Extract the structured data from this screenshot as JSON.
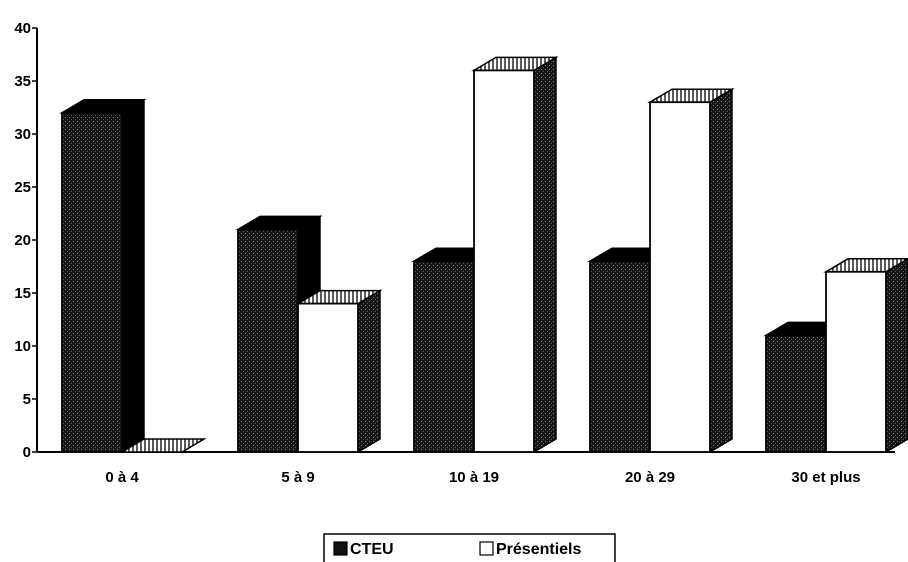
{
  "chart_data": {
    "type": "bar",
    "title": "",
    "xlabel": "",
    "ylabel": "",
    "ylim": [
      0,
      40
    ],
    "yticks": [
      0,
      5,
      10,
      15,
      20,
      25,
      30,
      35,
      40
    ],
    "categories": [
      "0 à 4",
      "5 à 9",
      "10 à 19",
      "20 à 29",
      "30 et plus"
    ],
    "series": [
      {
        "name": "CTEU",
        "values": [
          32,
          21,
          18,
          18,
          11
        ],
        "color": "#111111"
      },
      {
        "name": "Présentiels",
        "values": [
          0,
          14,
          36,
          33,
          17
        ],
        "color": "#ffffff"
      }
    ],
    "legend_position": "bottom-center",
    "grid": false,
    "style": "3d"
  }
}
